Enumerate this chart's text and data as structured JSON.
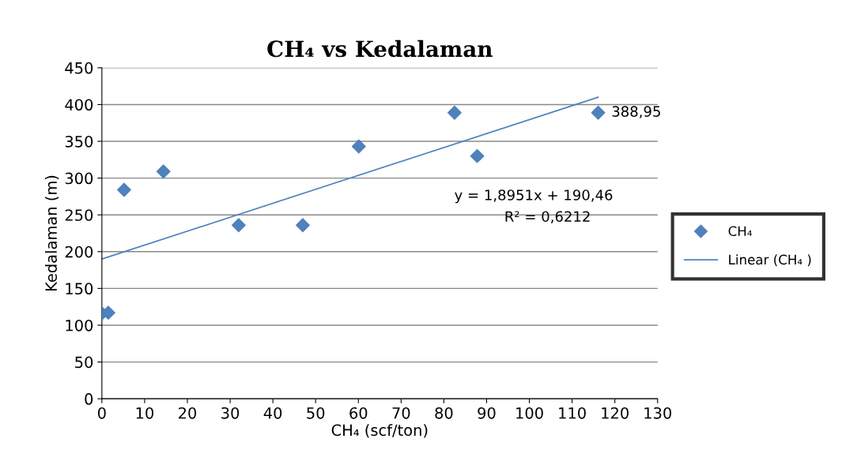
{
  "chart_data": {
    "type": "scatter",
    "title": "CH₄ vs Kedalaman",
    "xlabel": "CH₄ (scf/ton)",
    "ylabel": "Kedalaman (m)",
    "xlim": [
      0,
      130
    ],
    "xticks": [
      0,
      10,
      20,
      30,
      40,
      50,
      60,
      70,
      80,
      90,
      100,
      110,
      120,
      130
    ],
    "ylim": [
      0,
      450
    ],
    "yticks": [
      0,
      50,
      100,
      150,
      200,
      250,
      300,
      350,
      400,
      450
    ],
    "grid": "y",
    "legend": "right",
    "marker": "diamond",
    "series": [
      {
        "name": "CH₄",
        "color": "#4f81bd",
        "x": [
          0,
          1.5,
          5.2,
          14.4,
          32,
          47,
          60.1,
          82.5,
          87.8,
          116.1
        ],
        "values": [
          116,
          117,
          284,
          309,
          236,
          236,
          343,
          389,
          330,
          388.95
        ]
      },
      {
        "name": "Linear (CH₄ )",
        "type": "line",
        "marker": "none",
        "color": "#4f81bd",
        "x": [
          0,
          116.1
        ],
        "values": [
          190,
          410
        ]
      }
    ],
    "annotations": [
      {
        "text": "388,95",
        "x": 116.1,
        "y": 388.95
      },
      "y = 1,8951x + 190,46",
      "R² = 0,6212"
    ]
  }
}
